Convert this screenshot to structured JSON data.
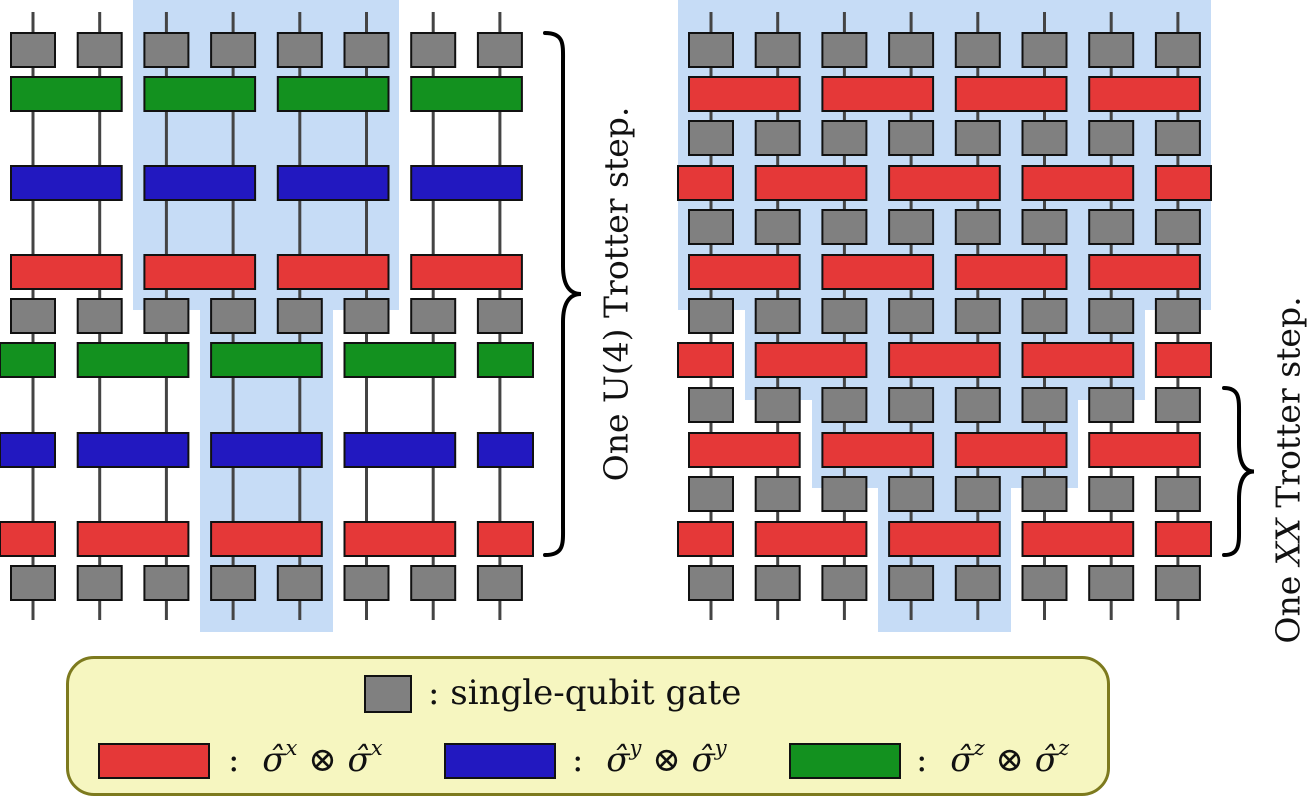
{
  "colors": {
    "single": "#808080",
    "xx": "#e53838",
    "yy": "#2218c0",
    "zz": "#13911f",
    "highlight": "#c6dcf6",
    "legend_bg": "#f6f6c0",
    "legend_border": "#7d7a1e"
  },
  "diagrams": {
    "left": {
      "num_qubits": 8,
      "label_parts": [
        "One U(4) Trotter step."
      ],
      "rows": [
        {
          "type": "single"
        },
        {
          "type": "pair",
          "gate": "zz",
          "parity": "even"
        },
        {
          "type": "pair",
          "gate": "yy",
          "parity": "even"
        },
        {
          "type": "pair",
          "gate": "xx",
          "parity": "even"
        },
        {
          "type": "single"
        },
        {
          "type": "pair",
          "gate": "zz",
          "parity": "odd"
        },
        {
          "type": "pair",
          "gate": "yy",
          "parity": "odd"
        },
        {
          "type": "pair",
          "gate": "xx",
          "parity": "odd"
        },
        {
          "type": "single"
        }
      ]
    },
    "right": {
      "num_qubits": 8,
      "label_parts": [
        "One ",
        "XX",
        " Trotter step."
      ],
      "rows": [
        {
          "type": "single"
        },
        {
          "type": "pair",
          "gate": "xx",
          "parity": "even"
        },
        {
          "type": "single"
        },
        {
          "type": "pair",
          "gate": "xx",
          "parity": "odd"
        },
        {
          "type": "single"
        },
        {
          "type": "pair",
          "gate": "xx",
          "parity": "even"
        },
        {
          "type": "single"
        },
        {
          "type": "pair",
          "gate": "xx",
          "parity": "odd"
        },
        {
          "type": "single"
        },
        {
          "type": "pair",
          "gate": "xx",
          "parity": "even"
        },
        {
          "type": "single"
        },
        {
          "type": "pair",
          "gate": "xx",
          "parity": "odd"
        },
        {
          "type": "single"
        }
      ]
    }
  },
  "legend": {
    "single": {
      "text": ": single-qubit gate"
    },
    "xx": {
      "colon": ":",
      "sup": "x"
    },
    "yy": {
      "colon": ":",
      "sup": "y"
    },
    "zz": {
      "colon": ":",
      "sup": "z"
    },
    "sigma": "σ̂",
    "otimes": "⊗"
  }
}
